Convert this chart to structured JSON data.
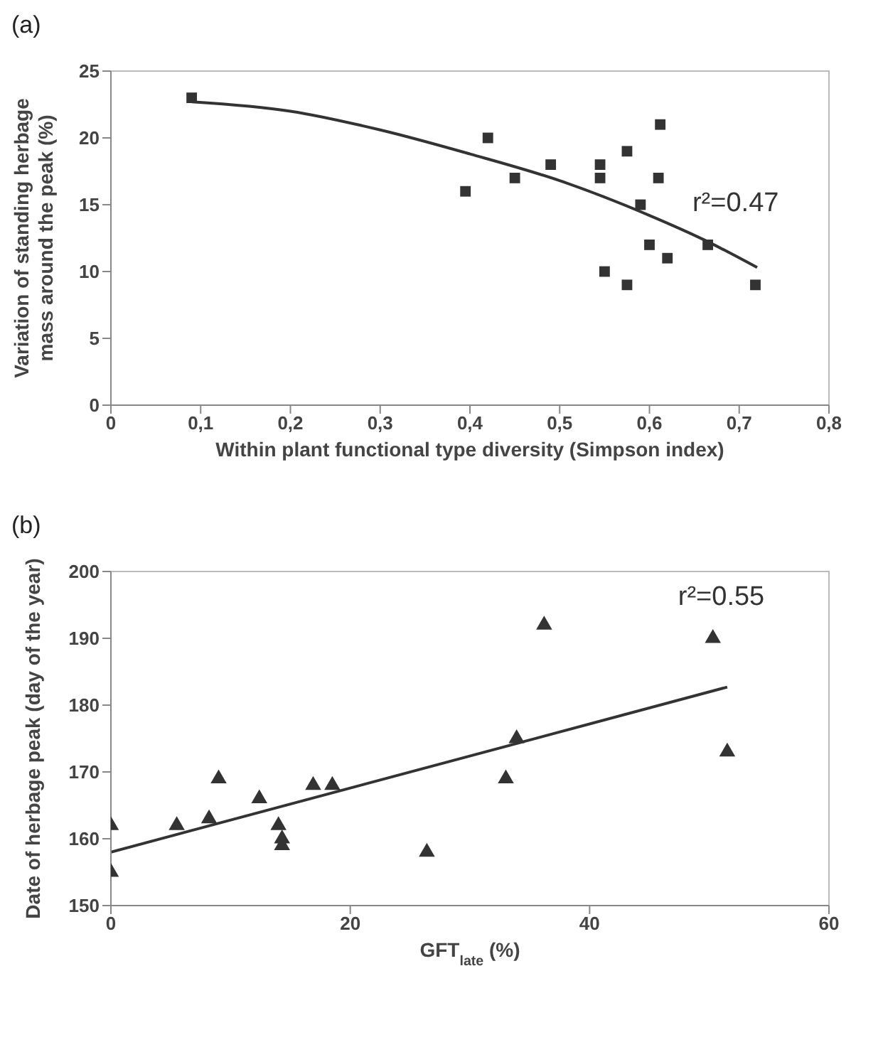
{
  "chart_data": [
    {
      "type": "scatter",
      "title": "(a)",
      "xlabel": "Within plant functional type diversity (Simpson index)",
      "ylabel": "Variation of standing herbage mass around the peak (%)",
      "xlim": [
        0,
        0.8
      ],
      "xticks": [
        0,
        {
          "value": 0.1,
          "label": "0,1"
        },
        {
          "value": 0.2,
          "label": "0,2"
        },
        {
          "value": 0.3,
          "label": "0,3"
        },
        {
          "value": 0.4,
          "label": "0,4"
        },
        {
          "value": 0.5,
          "label": "0,5"
        },
        {
          "value": 0.6,
          "label": "0,6"
        },
        {
          "value": 0.7,
          "label": "0,7"
        },
        {
          "value": 0.8,
          "label": "0,8"
        }
      ],
      "ylim": [
        0,
        25
      ],
      "yticks": [
        0,
        5,
        10,
        15,
        20,
        25
      ],
      "grid": false,
      "legend": false,
      "series": [
        {
          "marker": "square",
          "color": "#333333",
          "x": [
            0.09,
            0.395,
            0.42,
            0.45,
            0.49,
            0.545,
            0.545,
            0.55,
            0.575,
            0.575,
            0.59,
            0.6,
            0.61,
            0.612,
            0.62,
            0.665,
            0.718
          ],
          "values": [
            23,
            16,
            20,
            17,
            18,
            18,
            17,
            10,
            19,
            9,
            15,
            12,
            17,
            21,
            11,
            12,
            9
          ]
        },
        {
          "type": "line",
          "color": "#333333",
          "x": [
            0.09,
            0.2,
            0.3,
            0.4,
            0.5,
            0.6,
            0.66,
            0.72
          ],
          "values": [
            22.7,
            22,
            20.6,
            18.8,
            16.8,
            14.2,
            12.4,
            10.3
          ]
        }
      ],
      "annotations": [
        "r²=0.47"
      ]
    },
    {
      "type": "scatter",
      "title": "(b)",
      "xlabel": "GFT$_{late}$ (%)",
      "ylabel": "Date of herbage peak (day of the year)",
      "xlim": [
        0,
        60
      ],
      "xticks": [
        0,
        20,
        40,
        60
      ],
      "ylim": [
        150,
        200
      ],
      "yticks": [
        150,
        160,
        170,
        180,
        190,
        200
      ],
      "grid": false,
      "legend": false,
      "series": [
        {
          "marker": "triangle",
          "color": "#333333",
          "x": [
            0,
            0,
            5.5,
            8.2,
            9,
            12.4,
            14,
            14.3,
            14.3,
            16.9,
            18.5,
            26.4,
            33,
            33.9,
            36.2,
            50.3,
            51.5
          ],
          "values": [
            162,
            155,
            162,
            163,
            169,
            166,
            162,
            160,
            159,
            168,
            168,
            158,
            169,
            175,
            192,
            190,
            173
          ]
        },
        {
          "type": "line",
          "color": "#333333",
          "x": [
            0,
            51.5
          ],
          "values": [
            158,
            182.7
          ]
        }
      ],
      "annotations": [
        "r²=0.55"
      ]
    }
  ]
}
